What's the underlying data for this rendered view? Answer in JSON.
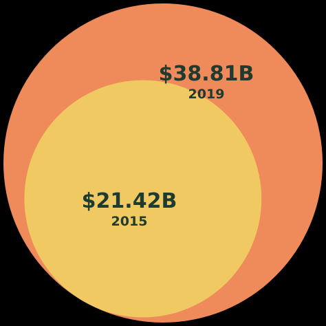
{
  "chart_data": {
    "type": "nested-bubble",
    "title": "",
    "series": [
      {
        "category": "2019",
        "value": 38.81,
        "value_label": "$38.81B",
        "color": "#ef8a5a"
      },
      {
        "category": "2015",
        "value": 21.42,
        "value_label": "$21.42B",
        "color": "#f0c962"
      }
    ],
    "units": "USD billions",
    "background": "#000000",
    "label_color": "#1f3a2e"
  }
}
